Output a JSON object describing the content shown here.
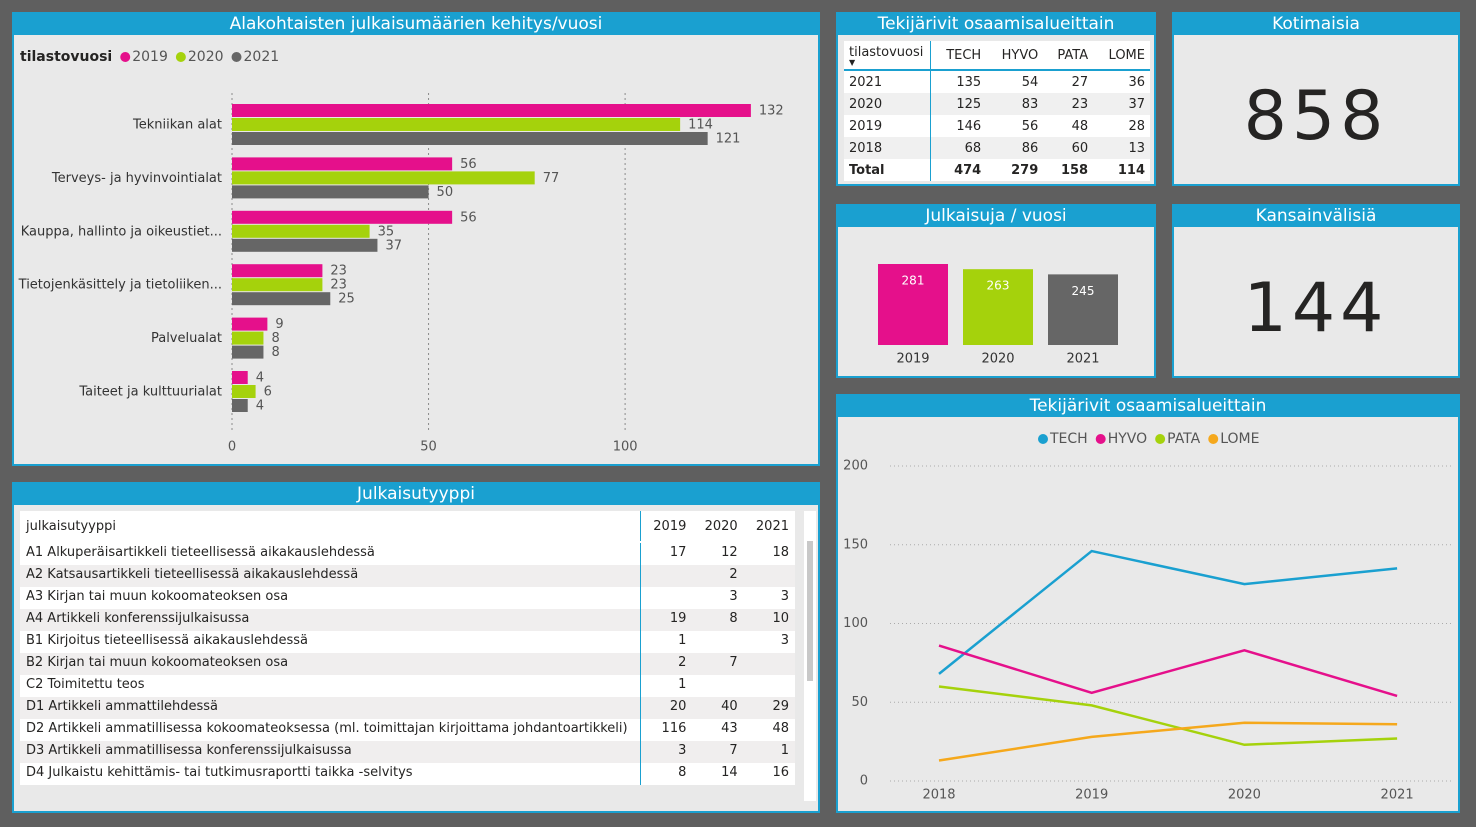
{
  "chart_data": [
    {
      "type": "hbar",
      "title": "Alakohtaisten julkaisumäärien kehitys/vuosi",
      "legend_title": "tilastovuosi",
      "categories": [
        "Tekniikan alat",
        "Terveys- ja hyvinvointialat",
        "Kauppa, hallinto ja oikeustiet...",
        "Tietojenkäsittely ja tietoliiken...",
        "Palvelualat",
        "Taiteet ja kulttuurialat"
      ],
      "series": [
        {
          "name": "2019",
          "color": "#e5108b",
          "values": [
            132,
            56,
            56,
            23,
            9,
            4
          ]
        },
        {
          "name": "2020",
          "color": "#a5d20c",
          "values": [
            114,
            77,
            35,
            23,
            8,
            6
          ]
        },
        {
          "name": "2021",
          "color": "#666666",
          "values": [
            121,
            50,
            37,
            25,
            8,
            4
          ]
        }
      ],
      "xlim": [
        0,
        145
      ],
      "xticks": [
        0,
        50,
        100
      ],
      "grid": true
    },
    {
      "type": "bar",
      "title": "Julkaisuja / vuosi",
      "categories": [
        "2019",
        "2020",
        "2021"
      ],
      "values": [
        281,
        263,
        245
      ],
      "colors": [
        "#e5108b",
        "#a5d20c",
        "#666666"
      ]
    },
    {
      "type": "line",
      "title": "Tekijärivit osaamisalueittain",
      "x": [
        "2018",
        "2019",
        "2020",
        "2021"
      ],
      "series": [
        {
          "name": "TECH",
          "color": "#1aa0d0",
          "values": [
            68,
            146,
            125,
            135
          ]
        },
        {
          "name": "HYVO",
          "color": "#e5108b",
          "values": [
            86,
            56,
            83,
            54
          ]
        },
        {
          "name": "PATA",
          "color": "#a5d20c",
          "values": [
            60,
            48,
            23,
            27
          ]
        },
        {
          "name": "LOME",
          "color": "#f5a81c",
          "values": [
            13,
            28,
            37,
            36
          ]
        }
      ],
      "ylim": [
        0,
        200
      ],
      "yticks": [
        0,
        50,
        100,
        150,
        200
      ],
      "grid": true
    }
  ],
  "author_table": {
    "title": "Tekijärivit osaamisalueittain",
    "header": [
      "tilastovuosi",
      "TECH",
      "HYVO",
      "PATA",
      "LOME"
    ],
    "rows": [
      [
        "2021",
        135,
        54,
        27,
        36
      ],
      [
        "2020",
        125,
        83,
        23,
        37
      ],
      [
        "2019",
        146,
        56,
        48,
        28
      ],
      [
        "2018",
        68,
        86,
        60,
        13
      ]
    ],
    "total": [
      "Total",
      474,
      279,
      158,
      114
    ]
  },
  "kpis": [
    {
      "title": "Kotimaisia",
      "value": 858
    },
    {
      "title": "Kansainvälisiä",
      "value": 144
    }
  ],
  "type_table": {
    "title": "Julkaisutyyppi",
    "header": [
      "julkaisutyyppi",
      "2019",
      "2020",
      "2021"
    ],
    "rows": [
      [
        "A1 Alkuperäisartikkeli tieteellisessä aikakauslehdessä",
        17,
        12,
        18
      ],
      [
        "A2 Katsausartikkeli tieteellisessä aikakauslehdessä",
        null,
        2,
        null
      ],
      [
        "A3 Kirjan tai muun kokoomateoksen osa",
        null,
        3,
        3
      ],
      [
        "A4 Artikkeli konferenssijulkaisussa",
        19,
        8,
        10
      ],
      [
        "B1 Kirjoitus tieteellisessä aikakauslehdessä",
        1,
        null,
        3
      ],
      [
        "B2 Kirjan tai muun kokoomateoksen osa",
        2,
        7,
        null
      ],
      [
        "C2 Toimitettu teos",
        1,
        null,
        null
      ],
      [
        "D1 Artikkeli ammattilehdessä",
        20,
        40,
        29
      ],
      [
        "D2 Artikkeli ammatillisessa kokoomateoksessa (ml. toimittajan kirjoittama johdantoartikkeli)",
        116,
        43,
        48
      ],
      [
        "D3 Artikkeli ammatillisessa konferenssijulkaisussa",
        3,
        7,
        1
      ],
      [
        "D4 Julkaistu kehittämis- tai tutkimusraportti taikka -selvitys",
        8,
        14,
        16
      ]
    ]
  }
}
